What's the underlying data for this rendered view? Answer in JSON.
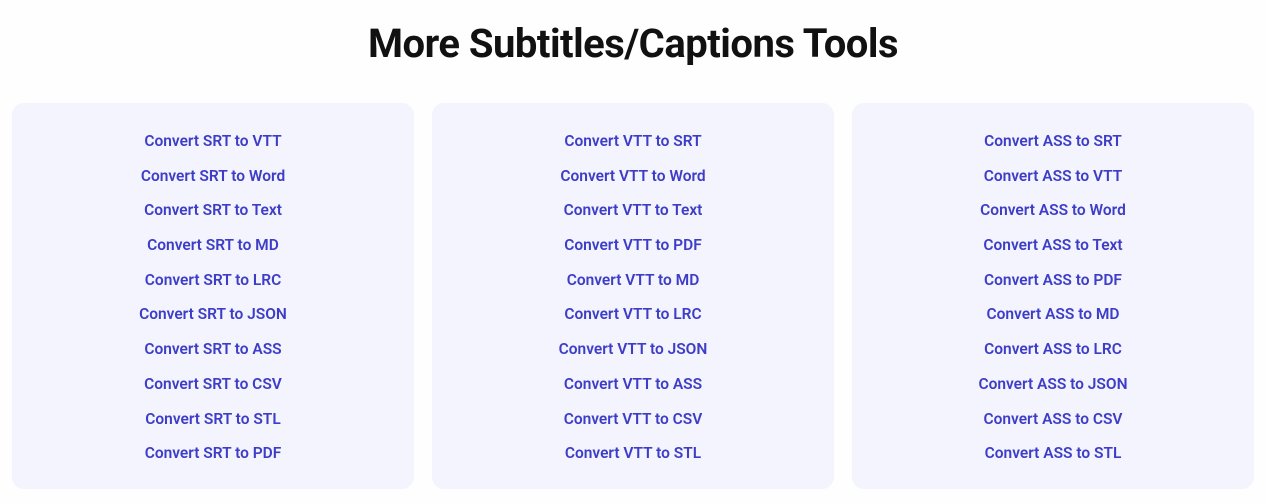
{
  "title": "More Subtitles/Captions Tools",
  "columns": [
    {
      "items": [
        "Convert SRT to VTT",
        "Convert SRT to Word",
        "Convert SRT to Text",
        "Convert SRT to MD",
        "Convert SRT to LRC",
        "Convert SRT to JSON",
        "Convert SRT to ASS",
        "Convert SRT to CSV",
        "Convert SRT to STL",
        "Convert SRT to PDF"
      ]
    },
    {
      "items": [
        "Convert VTT to SRT",
        "Convert VTT to Word",
        "Convert VTT to Text",
        "Convert VTT to PDF",
        "Convert VTT to MD",
        "Convert VTT to LRC",
        "Convert VTT to JSON",
        "Convert VTT to ASS",
        "Convert VTT to CSV",
        "Convert VTT to STL"
      ]
    },
    {
      "items": [
        "Convert ASS to SRT",
        "Convert ASS to VTT",
        "Convert ASS to Word",
        "Convert ASS to Text",
        "Convert ASS to PDF",
        "Convert ASS to MD",
        "Convert ASS to LRC",
        "Convert ASS to JSON",
        "Convert ASS to CSV",
        "Convert ASS to STL"
      ]
    }
  ],
  "colors": {
    "page_bg": "#fefefe",
    "card_bg": "#f3f4fd",
    "link_color": "#3d3dc7",
    "title_color": "#111"
  }
}
